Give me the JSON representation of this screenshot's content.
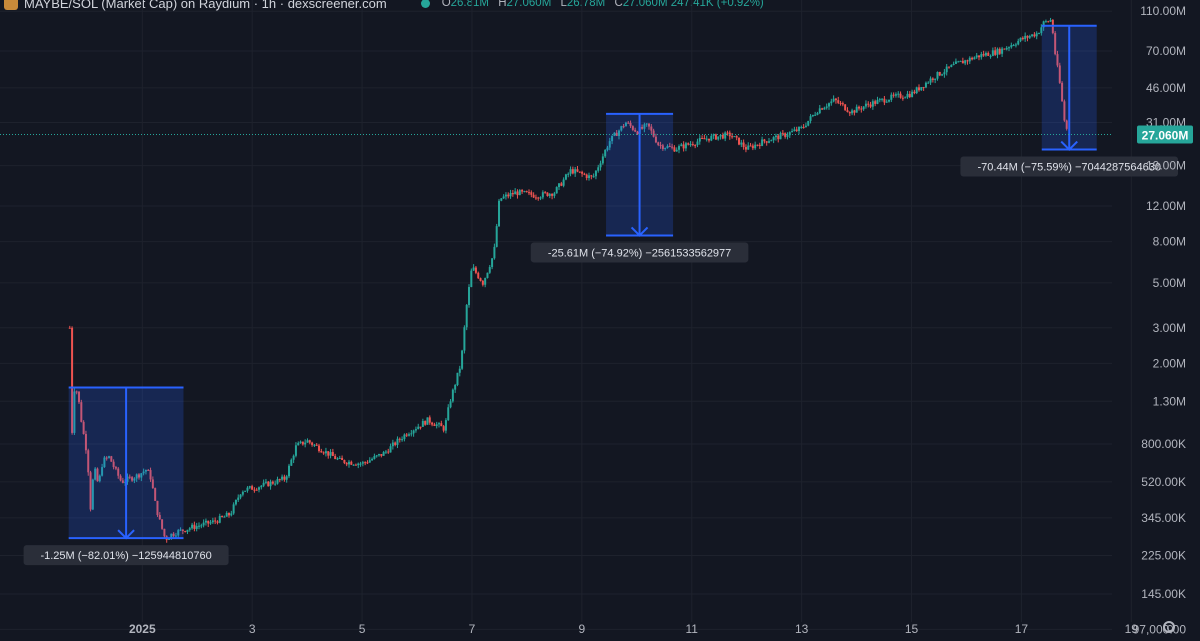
{
  "header": {
    "title": "MAYBE/SOL (Market Cap) on Raydium · 1h · dexscreener.com",
    "open_label": "O",
    "open": "26.81M",
    "high_label": "H",
    "high": "27.060M",
    "low_label": "L",
    "low": "26.78M",
    "close_label": "C",
    "close": "27.060M",
    "change": "247.41K (+0.92%)"
  },
  "chart_data": {
    "type": "candlestick",
    "y_scale": "log",
    "ylim": [
      85000,
      125000000
    ],
    "y_ticks": [
      {
        "label": "110.00M",
        "value": 110000000
      },
      {
        "label": "70.00M",
        "value": 70000000
      },
      {
        "label": "46.00M",
        "value": 46000000
      },
      {
        "label": "31.00M",
        "value": 31000000
      },
      {
        "label": "19.00M",
        "value": 19000000
      },
      {
        "label": "12.00M",
        "value": 12000000
      },
      {
        "label": "8.00M",
        "value": 8000000
      },
      {
        "label": "5.00M",
        "value": 5000000
      },
      {
        "label": "3.00M",
        "value": 3000000
      },
      {
        "label": "2.00M",
        "value": 2000000
      },
      {
        "label": "1.30M",
        "value": 1300000
      },
      {
        "label": "800.00K",
        "value": 800000
      },
      {
        "label": "520.00K",
        "value": 520000
      },
      {
        "label": "345.00K",
        "value": 345000
      },
      {
        "label": "225.00K",
        "value": 225000
      },
      {
        "label": "145.00K",
        "value": 145000
      },
      {
        "label": "97,000.00",
        "value": 97000
      }
    ],
    "x_ticks": [
      {
        "label": "2025",
        "day": 1
      },
      {
        "label": "3",
        "day": 3
      },
      {
        "label": "5",
        "day": 5
      },
      {
        "label": "7",
        "day": 7
      },
      {
        "label": "9",
        "day": 9
      },
      {
        "label": "11",
        "day": 11
      },
      {
        "label": "13",
        "day": 13
      },
      {
        "label": "15",
        "day": 15
      },
      {
        "label": "17",
        "day": 17
      },
      {
        "label": "19",
        "day": 19
      }
    ],
    "xlim_days": [
      -1.59,
      20.25
    ],
    "last_price": {
      "label": "27.060M",
      "value": 27060000
    },
    "path_points": [
      [
        -0.32,
        3000000
      ],
      [
        -0.28,
        900000
      ],
      [
        -0.24,
        1500000
      ],
      [
        -0.18,
        1450000
      ],
      [
        -0.1,
        1000000
      ],
      [
        0.0,
        700000
      ],
      [
        0.06,
        380000
      ],
      [
        0.12,
        620000
      ],
      [
        0.2,
        500000
      ],
      [
        0.28,
        660000
      ],
      [
        0.4,
        690000
      ],
      [
        0.5,
        600000
      ],
      [
        0.62,
        520000
      ],
      [
        0.78,
        540000
      ],
      [
        0.92,
        560000
      ],
      [
        1.0,
        580000
      ],
      [
        1.08,
        600000
      ],
      [
        1.16,
        540000
      ],
      [
        1.24,
        400000
      ],
      [
        1.32,
        330000
      ],
      [
        1.42,
        270000
      ],
      [
        1.52,
        285000
      ],
      [
        1.65,
        295000
      ],
      [
        1.9,
        310000
      ],
      [
        2.3,
        330000
      ],
      [
        2.6,
        360000
      ],
      [
        2.8,
        470000
      ],
      [
        3.2,
        500000
      ],
      [
        3.6,
        540000
      ],
      [
        3.8,
        780000
      ],
      [
        4.0,
        830000
      ],
      [
        4.3,
        740000
      ],
      [
        4.6,
        660000
      ],
      [
        5.0,
        640000
      ],
      [
        5.4,
        720000
      ],
      [
        5.8,
        900000
      ],
      [
        6.2,
        1050000
      ],
      [
        6.5,
        950000
      ],
      [
        6.6,
        1300000
      ],
      [
        6.8,
        2000000
      ],
      [
        6.9,
        3800000
      ],
      [
        7.0,
        6000000
      ],
      [
        7.2,
        5000000
      ],
      [
        7.4,
        7000000
      ],
      [
        7.5,
        13000000
      ],
      [
        7.8,
        14000000
      ],
      [
        8.2,
        13500000
      ],
      [
        8.5,
        14000000
      ],
      [
        8.8,
        18000000
      ],
      [
        9.2,
        16500000
      ],
      [
        9.5,
        25000000
      ],
      [
        9.8,
        31000000
      ],
      [
        10.0,
        28000000
      ],
      [
        10.2,
        30000000
      ],
      [
        10.4,
        24000000
      ],
      [
        10.7,
        23000000
      ],
      [
        11.0,
        24500000
      ],
      [
        11.3,
        26000000
      ],
      [
        11.7,
        27000000
      ],
      [
        12.0,
        23000000
      ],
      [
        12.3,
        25000000
      ],
      [
        12.7,
        27000000
      ],
      [
        13.0,
        29000000
      ],
      [
        13.3,
        36000000
      ],
      [
        13.6,
        40000000
      ],
      [
        13.9,
        35000000
      ],
      [
        14.2,
        38000000
      ],
      [
        14.6,
        41000000
      ],
      [
        15.0,
        43000000
      ],
      [
        15.4,
        52000000
      ],
      [
        15.8,
        60000000
      ],
      [
        16.2,
        66000000
      ],
      [
        16.6,
        70000000
      ],
      [
        17.0,
        80000000
      ],
      [
        17.3,
        86000000
      ],
      [
        17.4,
        96000000
      ],
      [
        17.55,
        100000000
      ],
      [
        17.6,
        72000000
      ],
      [
        17.7,
        48000000
      ],
      [
        17.78,
        32000000
      ],
      [
        17.85,
        27060000
      ]
    ],
    "annotations": [
      {
        "label": "-1.25M (−82.01%) −125944810760",
        "x1": -0.34,
        "x2": 1.75,
        "y_top": 1520000,
        "y_bottom": 274000
      },
      {
        "label": "-25.61M (−74.92%) −2561533562977",
        "x1": 9.44,
        "x2": 10.66,
        "y_top": 34200000,
        "y_bottom": 8580000
      },
      {
        "label": "-70.44M (−75.59%) −7044287564630",
        "x1": 17.37,
        "x2": 18.37,
        "y_top": 93200000,
        "y_bottom": 22800000
      }
    ]
  }
}
